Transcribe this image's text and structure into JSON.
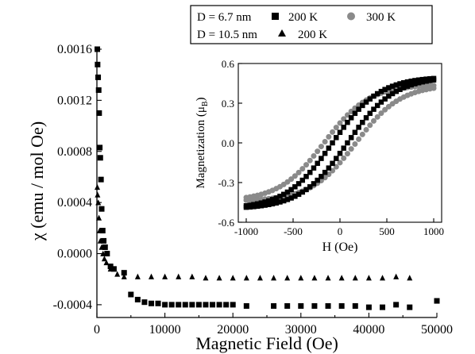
{
  "chart_data": [
    {
      "type": "scatter",
      "xlabel": "Magnetic Field (Oe)",
      "ylabel": "χ (emu / mol Oe)",
      "xlim": [
        0,
        50000
      ],
      "ylim": [
        -0.0005,
        0.0016
      ],
      "xticks": [
        "0",
        "10000",
        "20000",
        "30000",
        "40000",
        "50000"
      ],
      "yticks": [
        "-0.0004",
        "0.0000",
        "0.0004",
        "0.0008",
        "0.0012",
        "0.0016"
      ],
      "xtick_values": [
        0,
        10000,
        20000,
        30000,
        40000,
        50000
      ],
      "ytick_values": [
        -0.0004,
        0.0,
        0.0004,
        0.0008,
        0.0012,
        0.0016
      ],
      "series": [
        {
          "name": "D = 6.7 nm 200 K",
          "marker": "square",
          "points": [
            [
              60,
              0.0016
            ],
            [
              100,
              0.00148
            ],
            [
              180,
              0.00138
            ],
            [
              260,
              0.00128
            ],
            [
              330,
              0.0011
            ],
            [
              420,
              0.00083
            ],
            [
              500,
              0.00075
            ],
            [
              600,
              0.00058
            ],
            [
              700,
              0.00035
            ],
            [
              850,
              0.00018
            ],
            [
              1000,
              0.0001
            ],
            [
              1200,
              5e-05
            ],
            [
              1500,
              0.0
            ],
            [
              2000,
              -0.0001
            ],
            [
              2500,
              -0.00012
            ],
            [
              4000,
              -0.00015
            ],
            [
              5000,
              -0.00032
            ],
            [
              6000,
              -0.00036
            ],
            [
              7000,
              -0.00038
            ],
            [
              8000,
              -0.00039
            ],
            [
              9000,
              -0.00039
            ],
            [
              10000,
              -0.0004
            ],
            [
              11000,
              -0.0004
            ],
            [
              12000,
              -0.0004
            ],
            [
              13000,
              -0.0004
            ],
            [
              14000,
              -0.0004
            ],
            [
              15000,
              -0.0004
            ],
            [
              16000,
              -0.0004
            ],
            [
              17000,
              -0.0004
            ],
            [
              18000,
              -0.0004
            ],
            [
              19000,
              -0.0004
            ],
            [
              20000,
              -0.0004
            ],
            [
              22000,
              -0.00041
            ],
            [
              26000,
              -0.00041
            ],
            [
              28000,
              -0.00041
            ],
            [
              30000,
              -0.00041
            ],
            [
              32000,
              -0.00041
            ],
            [
              34000,
              -0.00041
            ],
            [
              36000,
              -0.00041
            ],
            [
              38000,
              -0.00041
            ],
            [
              40000,
              -0.00042
            ],
            [
              42000,
              -0.00042
            ],
            [
              44000,
              -0.0004
            ],
            [
              46000,
              -0.00042
            ],
            [
              50000,
              -0.00037
            ]
          ]
        },
        {
          "name": "D = 10.5 nm 200 K",
          "marker": "triangle",
          "points": [
            [
              60,
              0.00052
            ],
            [
              100,
              0.00046
            ],
            [
              200,
              0.0004
            ],
            [
              300,
              0.00028
            ],
            [
              400,
              0.00018
            ],
            [
              500,
              0.0001
            ],
            [
              700,
              5e-05
            ],
            [
              900,
              0.0
            ],
            [
              1100,
              -4e-05
            ],
            [
              1400,
              -7e-05
            ],
            [
              2000,
              -0.00012
            ],
            [
              3000,
              -0.00016
            ],
            [
              4000,
              -0.00018
            ],
            [
              6000,
              -0.00018
            ],
            [
              8000,
              -0.00018
            ],
            [
              10000,
              -0.00018
            ],
            [
              12000,
              -0.00018
            ],
            [
              14000,
              -0.00018
            ],
            [
              16000,
              -0.00019
            ],
            [
              18000,
              -0.00019
            ],
            [
              20000,
              -0.00019
            ],
            [
              22000,
              -0.00019
            ],
            [
              24000,
              -0.00019
            ],
            [
              26000,
              -0.00019
            ],
            [
              28000,
              -0.00019
            ],
            [
              30000,
              -0.00019
            ],
            [
              32000,
              -0.00019
            ],
            [
              34000,
              -0.00019
            ],
            [
              36000,
              -0.00019
            ],
            [
              38000,
              -0.00019
            ],
            [
              40000,
              -0.00019
            ],
            [
              42000,
              -0.00019
            ],
            [
              44000,
              -0.00018
            ],
            [
              46000,
              -0.00019
            ]
          ]
        }
      ],
      "legend": {
        "placement": "top",
        "rows": [
          [
            "D = 6.7 nm",
            "200 K",
            "300 K"
          ],
          [
            "D = 10.5 nm",
            "200 K"
          ]
        ]
      }
    },
    {
      "type": "scatter",
      "xlabel": "H (Oe)",
      "ylabel": "Magnetization (μ",
      "ylabel_sub": "B",
      "ylabel_end": ")",
      "xlim": [
        -1000,
        1000
      ],
      "ylim": [
        -0.6,
        0.6
      ],
      "xticks": [
        "-1000",
        "-500",
        "0",
        "500",
        "1000"
      ],
      "yticks": [
        "-0.6",
        "-0.3",
        "0.0",
        "0.3",
        "0.6"
      ],
      "xtick_values": [
        -1000,
        -500,
        0,
        500,
        1000
      ],
      "ytick_values": [
        -0.6,
        -0.3,
        0.0,
        0.3,
        0.6
      ],
      "series": [
        {
          "name": "D = 6.7 nm 200 K",
          "marker": "square",
          "loop": {
            "hc": 80,
            "width": 500,
            "amp": 0.5,
            "ms": 0.515
          }
        },
        {
          "name": "D = 6.7 nm 300 K",
          "marker": "circle",
          "loop": {
            "hc": 170,
            "width": 480,
            "amp": 0.44,
            "ms": 0.445
          }
        }
      ]
    }
  ],
  "colors": {
    "square": "#000000",
    "triangle": "#000000",
    "circle": "#8a8a8a"
  }
}
